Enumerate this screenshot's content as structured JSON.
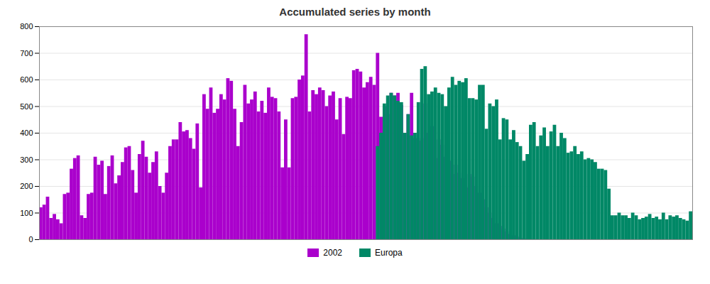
{
  "chart_data": {
    "type": "bar",
    "title": "Accumulated series by month",
    "categories": [
      null,
      null,
      null,
      null,
      null,
      null,
      null,
      null,
      null,
      null,
      null,
      null,
      null,
      null,
      null,
      null,
      null,
      null,
      null,
      null,
      null,
      null,
      null,
      null,
      null,
      null,
      null,
      null,
      null,
      null,
      null,
      null,
      null,
      null,
      null,
      null,
      null,
      null,
      null,
      null,
      null,
      null,
      null,
      null,
      null,
      null,
      null,
      null,
      null,
      null,
      null,
      null,
      null,
      null,
      null,
      null,
      null,
      null,
      null,
      null,
      null,
      null,
      null,
      null,
      null,
      null,
      null,
      null,
      null,
      null,
      null,
      null,
      null,
      null,
      null,
      null,
      null,
      null,
      null,
      null,
      null,
      null,
      null,
      null,
      null,
      null,
      null,
      null,
      null,
      null,
      null,
      null,
      null,
      null,
      null,
      null,
      null,
      null,
      null,
      null,
      null,
      null,
      null,
      null,
      null,
      null,
      null,
      null,
      null,
      null,
      null,
      null,
      null,
      null,
      null,
      null,
      null,
      null,
      null,
      null,
      null,
      null,
      null,
      null,
      null,
      null,
      null,
      null,
      null,
      null,
      null,
      null,
      null,
      null,
      null,
      null,
      null,
      null,
      null,
      null,
      null,
      null,
      null,
      null,
      null,
      null,
      null,
      null,
      null,
      null,
      null,
      null,
      null,
      null,
      null,
      null,
      null,
      null,
      null,
      null,
      null,
      null,
      null,
      null,
      null,
      null,
      null,
      null,
      null,
      null,
      null,
      null,
      null,
      null,
      null,
      null,
      null,
      null,
      null,
      null,
      null,
      null,
      null,
      null,
      null,
      null,
      null,
      null,
      null,
      null,
      null,
      null
    ],
    "series": [
      {
        "name": "2002",
        "color": "#aa00cc",
        "values": [
          120,
          130,
          160,
          80,
          95,
          75,
          60,
          170,
          175,
          265,
          305,
          315,
          90,
          80,
          170,
          175,
          310,
          280,
          295,
          170,
          275,
          315,
          210,
          240,
          290,
          345,
          350,
          260,
          175,
          320,
          370,
          310,
          250,
          290,
          330,
          200,
          175,
          250,
          350,
          375,
          375,
          440,
          405,
          410,
          380,
          340,
          435,
          195,
          545,
          490,
          570,
          475,
          490,
          545,
          525,
          605,
          595,
          490,
          350,
          440,
          580,
          510,
          525,
          555,
          480,
          520,
          475,
          570,
          535,
          530,
          480,
          270,
          450,
          270,
          530,
          535,
          600,
          615,
          770,
          480,
          560,
          545,
          570,
          560,
          500,
          540,
          555,
          450,
          530,
          395,
          535,
          530,
          635,
          640,
          630,
          570,
          590,
          610,
          580,
          700,
          460,
          500,
          470,
          550,
          540,
          550,
          505,
          400,
          470,
          550,
          380,
          370,
          380,
          510,
          400,
          425,
          305,
          375,
          355,
          310,
          295,
          245,
          280,
          250,
          230,
          195,
          245,
          235,
          200,
          175,
          150,
          120,
          100,
          80,
          60,
          50,
          40,
          30,
          20,
          15,
          10,
          5,
          3,
          2,
          1,
          1,
          0,
          0,
          0,
          0,
          0,
          0,
          0,
          0,
          0,
          0,
          0,
          0,
          0,
          0,
          0,
          0,
          0,
          0,
          0,
          0,
          0,
          0,
          0,
          0,
          0,
          0,
          0,
          0,
          0,
          0,
          0,
          0,
          0,
          0,
          0,
          0,
          0,
          0,
          0,
          0,
          0,
          0,
          0,
          0,
          0,
          0
        ]
      },
      {
        "name": "Europa",
        "color": "#008866",
        "values": [
          0,
          0,
          0,
          0,
          0,
          0,
          0,
          0,
          0,
          0,
          0,
          0,
          0,
          0,
          0,
          0,
          0,
          0,
          0,
          0,
          0,
          0,
          0,
          0,
          0,
          0,
          0,
          0,
          0,
          0,
          0,
          0,
          0,
          0,
          0,
          0,
          0,
          0,
          0,
          0,
          0,
          0,
          0,
          0,
          0,
          0,
          0,
          0,
          0,
          0,
          0,
          0,
          0,
          0,
          0,
          0,
          0,
          0,
          0,
          0,
          0,
          0,
          0,
          0,
          0,
          0,
          0,
          0,
          0,
          0,
          0,
          0,
          0,
          0,
          0,
          0,
          0,
          0,
          0,
          0,
          0,
          0,
          0,
          0,
          0,
          0,
          0,
          0,
          0,
          0,
          0,
          0,
          0,
          0,
          0,
          0,
          0,
          0,
          0,
          350,
          400,
          510,
          540,
          550,
          540,
          520,
          515,
          400,
          470,
          390,
          400,
          515,
          640,
          650,
          545,
          555,
          570,
          550,
          545,
          500,
          570,
          610,
          580,
          595,
          590,
          605,
          530,
          530,
          525,
          580,
          580,
          415,
          510,
          500,
          525,
          375,
          455,
          450,
          375,
          410,
          365,
          350,
          295,
          320,
          430,
          440,
          350,
          390,
          420,
          350,
          405,
          430,
          350,
          400,
          380,
          325,
          330,
          350,
          320,
          330,
          300,
          305,
          300,
          290,
          265,
          265,
          260,
          190,
          90,
          90,
          100,
          90,
          90,
          80,
          100,
          90,
          75,
          80,
          85,
          95,
          80,
          85,
          75,
          100,
          75,
          90,
          85,
          90,
          80,
          75,
          70,
          105
        ]
      }
    ],
    "ylim": [
      0,
      800
    ],
    "yticks": [
      0,
      100,
      200,
      300,
      400,
      500,
      600,
      700,
      800
    ],
    "grid": true,
    "stacked": false,
    "legend": "bottom",
    "tick_labels": "y"
  }
}
